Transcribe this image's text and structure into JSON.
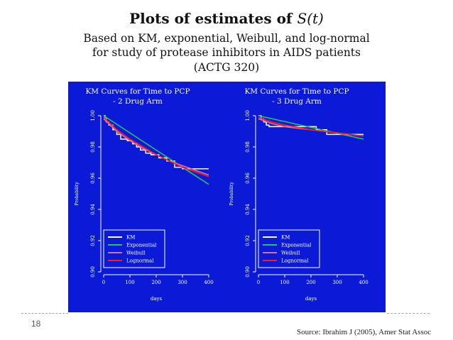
{
  "slide": {
    "title": "Plots of estimates of S(t)",
    "subtitle_lines": [
      "Based on KM, exponential, Weibull, and log-normal",
      "for study of protease inhibitors in AIDS patients",
      "(ACTG 320)"
    ],
    "page_number": "18",
    "source": "Source: Ibrahim J (2005), Amer Stat Assoc"
  },
  "colors": {
    "panel_bg": "#0a1ad6",
    "km": "#ffffff",
    "exponential": "#22c55e",
    "weibull": "#e0709a",
    "lognormal": "#ff1a1a"
  },
  "chart_data": [
    {
      "type": "line",
      "title_lines": [
        "KM Curves for Time to PCP",
        "- 2 Drug Arm"
      ],
      "xlabel": "days",
      "ylabel": "Probability",
      "xlim": [
        0,
        400
      ],
      "ylim": [
        0.9,
        1.0
      ],
      "xticks": [
        0,
        100,
        200,
        300,
        400
      ],
      "yticks": [
        0.9,
        0.92,
        0.94,
        0.96,
        0.98,
        1.0
      ],
      "legend": [
        "KM",
        "Exponential",
        "Weibull",
        "Lognormal"
      ],
      "legend_position": "bottom-left",
      "series": [
        {
          "name": "KM",
          "step": true,
          "x": [
            0,
            5,
            10,
            20,
            35,
            50,
            65,
            90,
            110,
            125,
            140,
            160,
            180,
            210,
            240,
            270,
            300,
            400
          ],
          "y": [
            1.0,
            0.998,
            0.996,
            0.994,
            0.991,
            0.988,
            0.985,
            0.984,
            0.982,
            0.98,
            0.978,
            0.976,
            0.975,
            0.973,
            0.971,
            0.967,
            0.966,
            0.966
          ]
        },
        {
          "name": "Exponential",
          "step": false,
          "x": [
            0,
            400
          ],
          "y": [
            1.0,
            0.956
          ]
        },
        {
          "name": "Weibull",
          "step": false,
          "x": [
            0,
            50,
            100,
            150,
            200,
            250,
            300,
            350,
            400
          ],
          "y": [
            0.998,
            0.99,
            0.984,
            0.979,
            0.975,
            0.971,
            0.968,
            0.965,
            0.962
          ]
        },
        {
          "name": "Lognormal",
          "step": false,
          "x": [
            0,
            50,
            100,
            150,
            200,
            250,
            300,
            350,
            400
          ],
          "y": [
            0.999,
            0.991,
            0.985,
            0.98,
            0.975,
            0.971,
            0.967,
            0.964,
            0.961
          ]
        }
      ]
    },
    {
      "type": "line",
      "title_lines": [
        "KM Curves for Time to PCP",
        "- 3 Drug Arm"
      ],
      "xlabel": "days",
      "ylabel": "Probability",
      "xlim": [
        0,
        400
      ],
      "ylim": [
        0.9,
        1.0
      ],
      "xticks": [
        0,
        100,
        200,
        300,
        400
      ],
      "yticks": [
        0.9,
        0.92,
        0.94,
        0.96,
        0.98,
        1.0
      ],
      "legend": [
        "KM",
        "Exponential",
        "Weibull",
        "Lognormal"
      ],
      "legend_position": "bottom-left",
      "series": [
        {
          "name": "KM",
          "step": true,
          "x": [
            0,
            10,
            20,
            30,
            40,
            220,
            260,
            400
          ],
          "y": [
            1.0,
            0.998,
            0.996,
            0.994,
            0.993,
            0.991,
            0.988,
            0.988
          ]
        },
        {
          "name": "Exponential",
          "step": false,
          "x": [
            0,
            400
          ],
          "y": [
            1.0,
            0.985
          ]
        },
        {
          "name": "Weibull",
          "step": false,
          "x": [
            0,
            50,
            100,
            200,
            300,
            400
          ],
          "y": [
            0.998,
            0.995,
            0.993,
            0.991,
            0.989,
            0.987
          ]
        },
        {
          "name": "Lognormal",
          "step": false,
          "x": [
            0,
            50,
            100,
            200,
            300,
            400
          ],
          "y": [
            0.999,
            0.996,
            0.994,
            0.991,
            0.989,
            0.987
          ]
        }
      ]
    }
  ]
}
